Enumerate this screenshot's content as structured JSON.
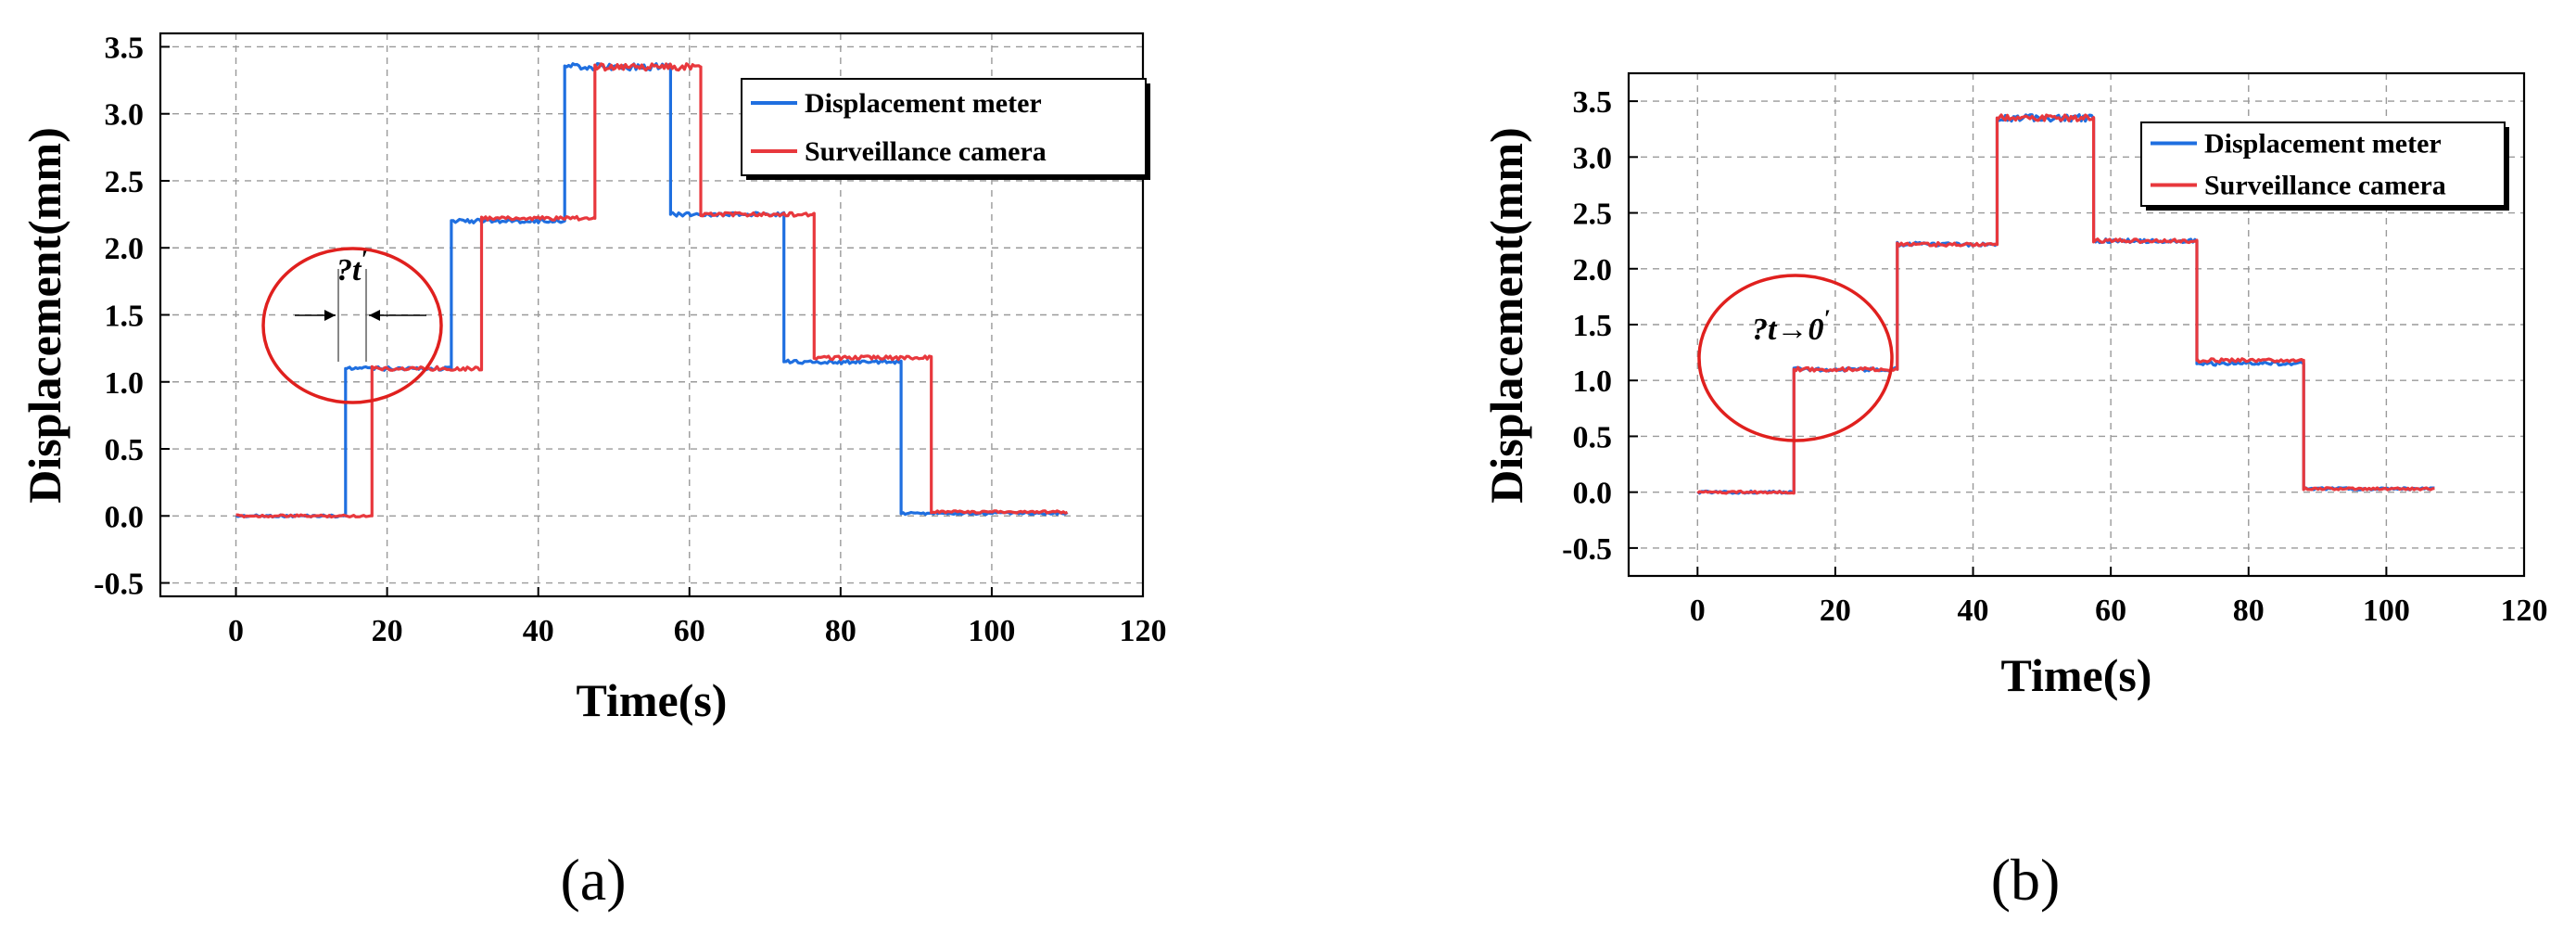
{
  "chart_data": [
    {
      "type": "line",
      "panel_label": "(a)",
      "xlabel": "Time(s)",
      "ylabel": "Displacement(mm)",
      "xlim": [
        -10,
        120
      ],
      "ylim": [
        -0.6,
        3.6
      ],
      "xticks": [
        0,
        20,
        40,
        60,
        80,
        100,
        120
      ],
      "xtick_labels": [
        "0",
        "20",
        "40",
        "60",
        "80",
        "100",
        "120"
      ],
      "yticks": [
        -0.5,
        0.0,
        0.5,
        1.0,
        1.5,
        2.0,
        2.5,
        3.0,
        3.5
      ],
      "ytick_labels": [
        "-0.5",
        "0.0",
        "0.5",
        "1.0",
        "1.5",
        "2.0",
        "2.5",
        "3.0",
        "3.5"
      ],
      "grid": true,
      "legend_position": "top-right",
      "annotation": "?t",
      "series": [
        {
          "name": "Displacement meter",
          "color": "#1f6fe0",
          "x": [
            0,
            14.5,
            14.5,
            28.5,
            28.5,
            43.5,
            43.5,
            57.5,
            57.5,
            72.5,
            72.5,
            88,
            88,
            110
          ],
          "y": [
            0.0,
            0.0,
            1.1,
            1.1,
            2.2,
            2.2,
            3.35,
            3.35,
            2.25,
            2.25,
            1.15,
            1.15,
            0.02,
            0.02
          ]
        },
        {
          "name": "Surveillance camera",
          "color": "#e8383d",
          "x": [
            0,
            18,
            18,
            32.5,
            32.5,
            47.5,
            47.5,
            61.5,
            61.5,
            76.5,
            76.5,
            92,
            92,
            110
          ],
          "y": [
            0.0,
            0.0,
            1.1,
            1.1,
            2.22,
            2.22,
            3.35,
            3.35,
            2.25,
            2.25,
            1.18,
            1.18,
            0.03,
            0.03
          ]
        }
      ]
    },
    {
      "type": "line",
      "panel_label": "(b)",
      "xlabel": "Time(s)",
      "ylabel": "Displacement(mm)",
      "xlim": [
        -10,
        120
      ],
      "ylim": [
        -0.75,
        3.75
      ],
      "xticks": [
        0,
        20,
        40,
        60,
        80,
        100,
        120
      ],
      "xtick_labels": [
        "0",
        "20",
        "40",
        "60",
        "80",
        "100",
        "120"
      ],
      "yticks": [
        -0.5,
        0.0,
        0.5,
        1.0,
        1.5,
        2.0,
        2.5,
        3.0,
        3.5
      ],
      "ytick_labels": [
        "-0.5",
        "0.0",
        "0.5",
        "1.0",
        "1.5",
        "2.0",
        "2.5",
        "3.0",
        "3.5"
      ],
      "grid": true,
      "legend_position": "top-right",
      "annotation": "?t→0",
      "series": [
        {
          "name": "Displacement meter",
          "color": "#1f6fe0",
          "x": [
            0,
            14,
            14,
            29,
            29,
            43.5,
            43.5,
            57.5,
            57.5,
            72.5,
            72.5,
            88,
            88,
            107
          ],
          "y": [
            0.0,
            0.0,
            1.1,
            1.1,
            2.22,
            2.22,
            3.35,
            3.35,
            2.25,
            2.25,
            1.15,
            1.15,
            0.03,
            0.03
          ]
        },
        {
          "name": "Surveillance camera",
          "color": "#e8383d",
          "x": [
            0,
            14,
            14,
            29,
            29,
            43.5,
            43.5,
            57.5,
            57.5,
            72.5,
            72.5,
            88,
            88,
            107
          ],
          "y": [
            0.0,
            0.0,
            1.1,
            1.1,
            2.22,
            2.22,
            3.35,
            3.35,
            2.25,
            2.25,
            1.18,
            1.18,
            0.03,
            0.03
          ]
        }
      ]
    }
  ]
}
